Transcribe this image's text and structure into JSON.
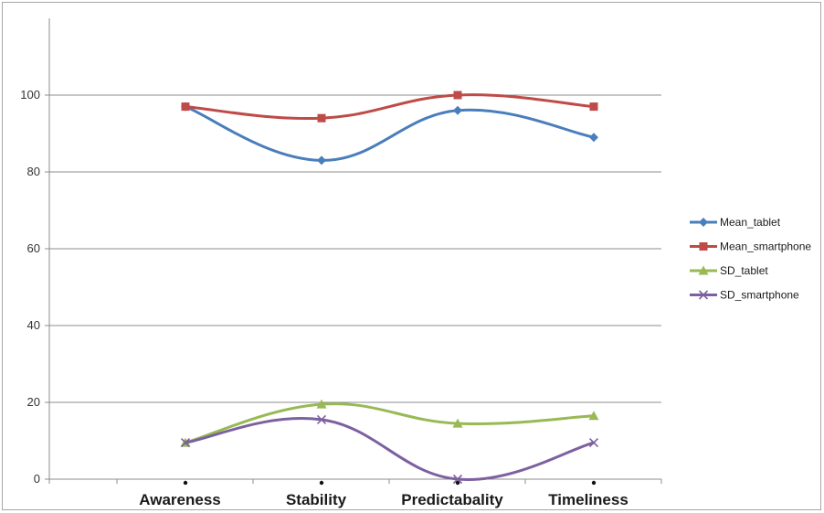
{
  "chart_data": {
    "type": "line",
    "smooth": true,
    "categories": [
      "Awareness",
      "Stability",
      "Predictabality",
      "Timeliness"
    ],
    "ylim": [
      0,
      120
    ],
    "yticks": [
      0,
      20,
      40,
      60,
      80,
      100
    ],
    "grid": true,
    "legend_position": "right",
    "series": [
      {
        "name": "Mean_tablet",
        "values": [
          97,
          83,
          96,
          89
        ],
        "color": "#4a7ebb",
        "marker": "diamond"
      },
      {
        "name": "Mean_smartphone",
        "values": [
          97,
          94,
          100,
          97
        ],
        "color": "#be4b48",
        "marker": "square"
      },
      {
        "name": "SD_tablet",
        "values": [
          9.5,
          19.5,
          14.5,
          16.5
        ],
        "color": "#98b954",
        "marker": "triangle"
      },
      {
        "name": "SD_smartphone",
        "values": [
          9.5,
          15.5,
          0,
          9.5
        ],
        "color": "#7d60a0",
        "marker": "x"
      }
    ]
  }
}
